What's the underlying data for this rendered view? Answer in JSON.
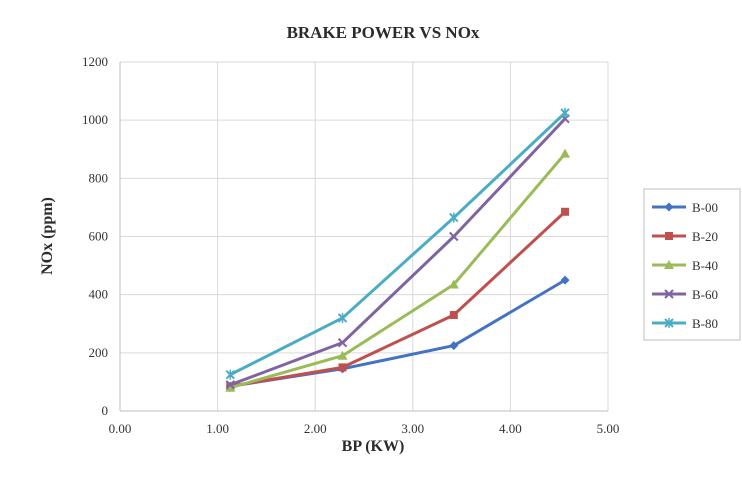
{
  "chart_data": {
    "type": "line",
    "title": "BRAKE POWER VS NOx",
    "xlabel": "BP (KW)",
    "ylabel": "NOx (ppm)",
    "xlim": [
      0,
      5
    ],
    "ylim": [
      0,
      1200
    ],
    "x_ticks": [
      "0.00",
      "1.00",
      "2.00",
      "3.00",
      "4.00",
      "5.00"
    ],
    "y_ticks": [
      "0",
      "200",
      "400",
      "600",
      "800",
      "1000",
      "1200"
    ],
    "grid": true,
    "legend_position": "right",
    "series": [
      {
        "name": "B-00",
        "color": "#4472C4",
        "marker": "diamond",
        "x": [
          1.13,
          2.28,
          3.42,
          4.56
        ],
        "y": [
          85,
          145,
          225,
          450
        ]
      },
      {
        "name": "B-20",
        "color": "#C0504D",
        "marker": "square",
        "x": [
          1.13,
          2.28,
          3.42,
          4.56
        ],
        "y": [
          85,
          150,
          330,
          685
        ]
      },
      {
        "name": "B-40",
        "color": "#9BBB59",
        "marker": "triangle",
        "x": [
          1.13,
          2.28,
          3.42,
          4.56
        ],
        "y": [
          80,
          190,
          435,
          885
        ]
      },
      {
        "name": "B-60",
        "color": "#8064A2",
        "marker": "x",
        "x": [
          1.13,
          2.28,
          3.42,
          4.56
        ],
        "y": [
          90,
          235,
          600,
          1005
        ]
      },
      {
        "name": "B-80",
        "color": "#4BACC6",
        "marker": "star",
        "x": [
          1.13,
          2.28,
          3.42,
          4.56
        ],
        "y": [
          125,
          320,
          665,
          1025
        ]
      }
    ]
  }
}
